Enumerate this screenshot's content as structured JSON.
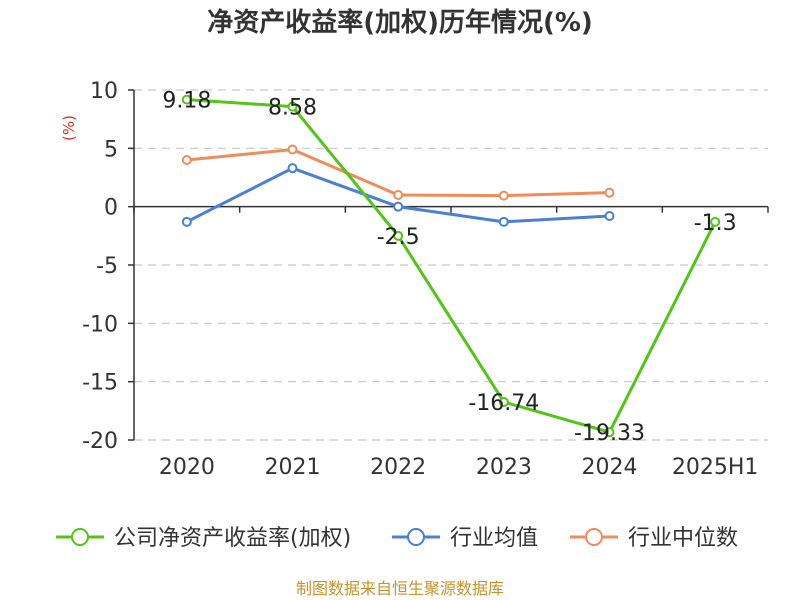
{
  "title": "净资产收益率(加权)历年情况(%)",
  "source": "制图数据来自恒生聚源数据库",
  "chart_data": {
    "type": "line",
    "ylabel": "(%)",
    "xlabel": "",
    "categories": [
      "2020",
      "2021",
      "2022",
      "2023",
      "2024",
      "2025H1"
    ],
    "ylim": [
      -20,
      10
    ],
    "yticks": [
      10,
      5,
      0,
      -5,
      -10,
      -15,
      -20
    ],
    "grid": true,
    "legend_position": "bottom",
    "series": [
      {
        "name": "公司净资产收益率(加权)",
        "color": "#52c41a",
        "values": [
          9.18,
          8.58,
          -2.5,
          -16.74,
          -19.33,
          -1.3
        ],
        "labels": [
          "9.18",
          "8.58",
          "-2.5",
          "-16.74",
          "-19.33",
          "-1.3"
        ]
      },
      {
        "name": "行业均值",
        "color": "#4a7fd6",
        "values": [
          -1.3,
          3.3,
          0.0,
          -1.3,
          -0.8,
          null
        ],
        "labels": null
      },
      {
        "name": "行业中位数",
        "color": "#f08c5a",
        "values": [
          4.0,
          4.9,
          1.0,
          0.95,
          1.2,
          null
        ],
        "labels": null
      }
    ]
  }
}
